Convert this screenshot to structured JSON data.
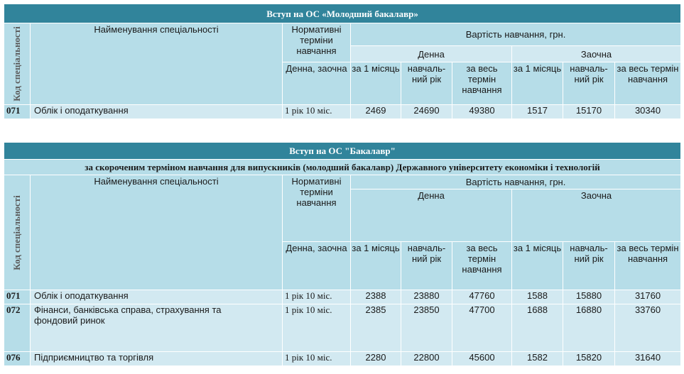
{
  "table1": {
    "title": "Вступ на ОС «Молодший бакалавр»",
    "code_header": "Код спеціальності",
    "name_header": "Найменування спеціальності",
    "term_header": "Нормативні терміни навчання",
    "cost_header": "Вартість навчання, грн.",
    "day_label": "Денна",
    "part_label": "Заочна",
    "term_sub": "Денна, заочна",
    "per_month": "за 1 місяць",
    "per_year": "навчаль-ний рік",
    "whole_term": "за весь термін навчання",
    "rows": [
      {
        "code": "071",
        "name": "Облік і оподаткування",
        "term": "1 рік 10 міс.",
        "d_month": "2469",
        "d_year": "24690",
        "d_total": "49380",
        "z_month": "1517",
        "z_year": "15170",
        "z_total": "30340"
      }
    ]
  },
  "table2": {
    "title": "Вступ на ОС \"Бакалавр\"",
    "subtitle": "за скороченим терміном навчання для випускників (молодший бакалавр) Державного університету економіки і технологій",
    "code_header": "Код спеціальності",
    "name_header": "Найменування спеціальності",
    "term_header": "Нормативні терміни навчання",
    "cost_header": "Вартість навчання, грн.",
    "day_label": "Денна",
    "part_label": "Заочна",
    "term_sub": "Денна, заочна",
    "per_month": "за 1 місяць",
    "per_year": "навчаль-ний рік",
    "whole_term": "за весь термін навчання",
    "rows": [
      {
        "code": "071",
        "name": "Облік і оподаткування",
        "term": "1 рік 10 міс.",
        "d_month": "2388",
        "d_year": "23880",
        "d_total": "47760",
        "z_month": "1588",
        "z_year": "15880",
        "z_total": "31760"
      },
      {
        "code": "072",
        "name": "Фінанси, банківська справа, страхування та фондовий ринок",
        "term": "1 рік 10 міс.",
        "d_month": "2385",
        "d_year": "23850",
        "d_total": "47700",
        "z_month": "1688",
        "z_year": "16880",
        "z_total": "33760"
      },
      {
        "code": "076",
        "name": "Підприємництво та торгівля",
        "term": "1 рік 10 міс.",
        "d_month": "2280",
        "d_year": "22800",
        "d_total": "45600",
        "z_month": "1582",
        "z_year": "15820",
        "z_total": "31640"
      }
    ]
  }
}
